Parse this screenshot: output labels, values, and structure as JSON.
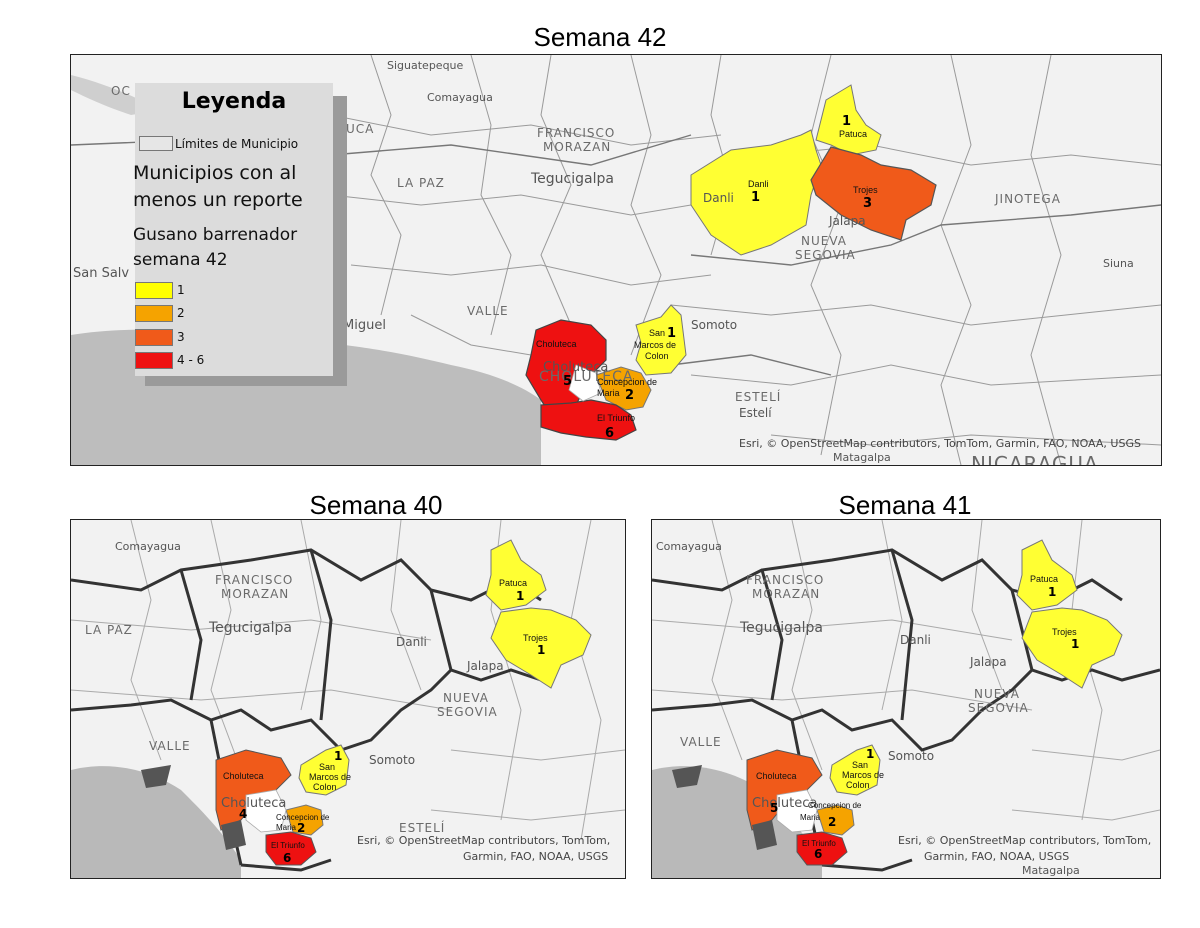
{
  "maps": {
    "main": {
      "title": "Semana 42"
    },
    "left": {
      "title": "Semana 40"
    },
    "right": {
      "title": "Semana 41"
    }
  },
  "legend": {
    "title": "Leyenda",
    "boundary_label": "Límites de Municipio",
    "heading": "Municipios con al menos un reporte",
    "heading_line1": "Municipios con al",
    "heading_line2": "menos un reporte",
    "sub_line1": "Gusano barrenador",
    "sub_line2": "semana 42",
    "classes": [
      {
        "label": "1",
        "color": "#ffff00"
      },
      {
        "label": "2",
        "color": "#f5a300"
      },
      {
        "label": "3",
        "color": "#f05a1a"
      },
      {
        "label": "4 - 6",
        "color": "#ee1111"
      }
    ]
  },
  "places": {
    "siguatepeque": "Siguatepeque",
    "comayagua": "Comayagua",
    "francisco": "FRANCISCO",
    "morazan": "MORAZAN",
    "tegucigalpa": "Tegucigalpa",
    "la_paz": "LA PAZ",
    "danli": "Danli",
    "jalapa": "Jalapa",
    "nueva": "NUEVA",
    "segovia": "SEGOVIA",
    "jinotega": "JINOTEGA",
    "siuna": "Siuna",
    "valle": "VALLE",
    "somoto": "Somoto",
    "esteli_caps": "ESTELÍ",
    "esteli": "Estelí",
    "matagalpa": "Matagalpa",
    "san_salv": "San Salv",
    "miguel": "Miguel",
    "choluteca_town": "Choluteca",
    "choluteca_dept": "CHOLUTECA",
    "nicaragua": "NICARAGUA",
    "ucа": "UCA",
    "oc": "OC"
  },
  "municipalities": {
    "patuca": "Patuca",
    "trojes": "Trojes",
    "danli": "Danli",
    "san_marcos_1": "San",
    "san_marcos_2": "Marcos de",
    "san_marcos_3": "Colon",
    "choluteca": "Choluteca",
    "concepcion_1": "Concepcion de",
    "concepcion_2": "Maria",
    "el_triunfo": "El Triunfo"
  },
  "counts": {
    "semana_42": {
      "danli": "1",
      "patuca": "1",
      "trojes": "3",
      "san_marcos": "1",
      "choluteca": "5",
      "concepcion": "2",
      "el_triunfo": "6"
    },
    "semana_40": {
      "patuca": "1",
      "trojes": "1",
      "san_marcos": "1",
      "choluteca": "4",
      "concepcion": "2",
      "el_triunfo": "6"
    },
    "semana_41": {
      "patuca": "1",
      "trojes": "1",
      "san_marcos": "1",
      "choluteca": "5",
      "concepcion": "2",
      "el_triunfo": "6"
    }
  },
  "credits": {
    "main": "Esri, © OpenStreetMap contributors, TomTom, Garmin, FAO, NOAA, USGS",
    "small_1": "Esri, © OpenStreetMap contributors, TomTom,",
    "small_2": "Garmin, FAO, NOAA, USGS"
  },
  "colors": {
    "class_1": "#ffff00",
    "class_2": "#f5a300",
    "class_3": "#f05a1a",
    "class_4_6": "#ee1111",
    "background": "#f2f2f2",
    "water": "#b9b9b9"
  }
}
